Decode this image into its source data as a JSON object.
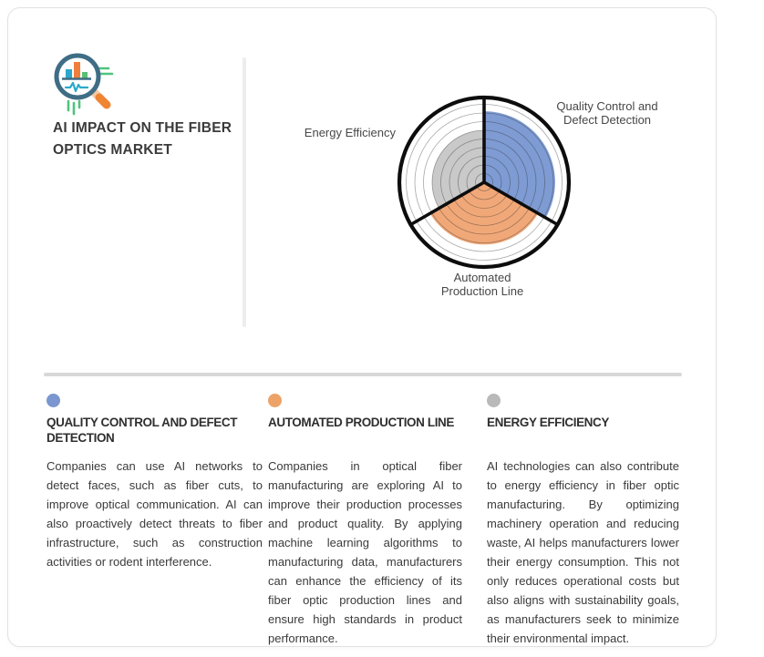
{
  "header": {
    "title": "AI IMPACT ON THE FIBER OPTICS MARKET",
    "logo_icon": "bar-chart-magnifier-icon"
  },
  "chart_data": {
    "type": "polar-area",
    "title": "",
    "categories": [
      "Quality Control and Defect Detection",
      "Automated Production Line",
      "Energy Efficiency"
    ],
    "values": [
      82,
      72,
      60
    ],
    "max_value": 100,
    "rings": 10,
    "start_angle_deg": 90,
    "direction": "clockwise",
    "sector_colors": [
      "#7e9bd3",
      "#f1a878",
      "#c9c9c9"
    ],
    "outline_color": "#0d0d0d",
    "gridline_color": "rgba(45,45,45,0.42)",
    "legend_position": "around-chart",
    "grid": true
  },
  "divider_colors": {
    "vertical": "#ededed",
    "horizontal": "#d8d8d8"
  },
  "sections": [
    {
      "dot_color": "#7b96d0",
      "heading": "QUALITY CONTROL AND DEFECT DETECTION",
      "body": "Companies can use AI networks to detect faces, such as fiber cuts, to improve optical communication. AI can also proactively detect threats to fiber infrastructure, such as construction activities or rodent interference."
    },
    {
      "dot_color": "#eda267",
      "heading": "AUTOMATED PRODUCTION LINE",
      "body": "Companies in optical fiber manufacturing are exploring AI to improve their production processes and product quality. By applying machine learning algorithms to manufacturing data, manufacturers can enhance the efficiency of its fiber optic production lines and ensure high standards in product performance."
    },
    {
      "dot_color": "#b9b9b9",
      "heading": "ENERGY EFFICIENCY",
      "body": "AI technologies can also contribute to energy efficiency in fiber optic manufacturing. By optimizing machinery operation and reducing waste, AI helps manufacturers lower their energy consumption. This not only reduces operational costs but also aligns with sustainability goals, as manufacturers seek to minimize their environmental impact."
    }
  ]
}
